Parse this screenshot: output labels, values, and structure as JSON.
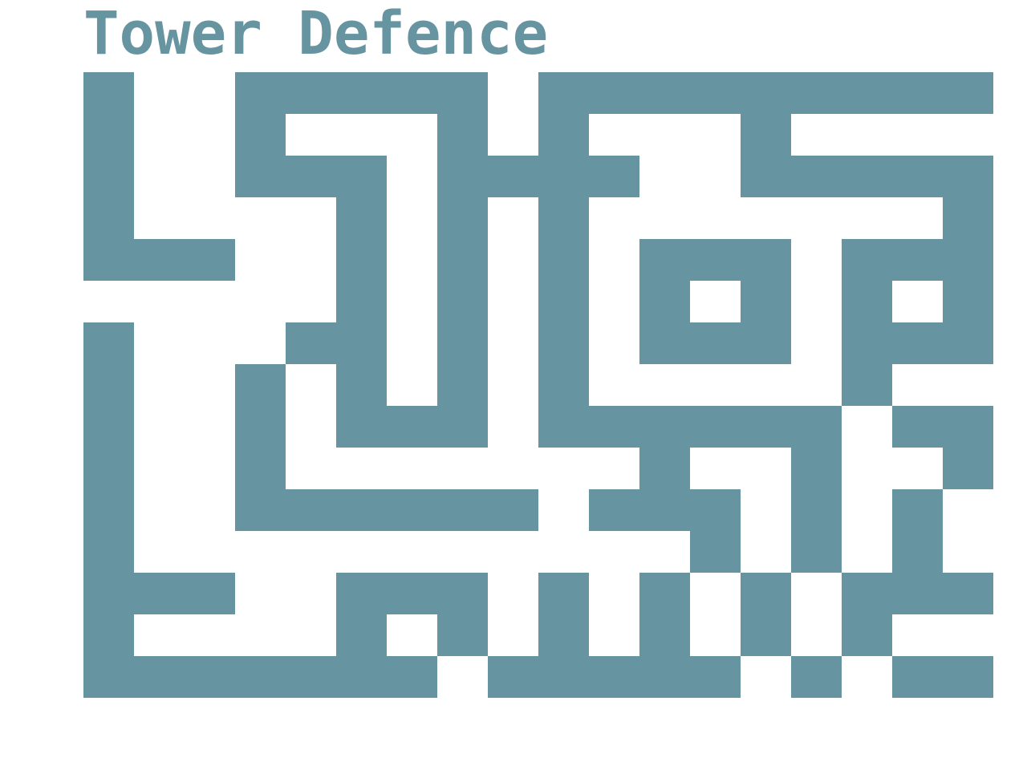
{
  "game": {
    "title": "Tower Defence"
  },
  "colors": {
    "wall": "#6794a1",
    "path": "#ffffff",
    "title": "#6794a1"
  },
  "maze": {
    "legend": {
      "#": "wall",
      ".": "path"
    },
    "grid": [
      "#..#####.#########",
      "#..#...#.#...#....",
      "#..###.####..#####",
      "#....#.#.#.......#",
      "###..#.#.#.###.###",
      ".....#.#.#.#.#.#.#",
      "#...##.#.#.###.###",
      "#..#.#.#.#.....#..",
      "#..#.###.######.##",
      "#..#.......#..#..#",
      "#..######.###.#.#.",
      "#...........#.#.#.",
      "###..###.#.#.#.###",
      "#....#.#.#.#.#.#..",
      "#######.#####.#.##"
    ]
  }
}
